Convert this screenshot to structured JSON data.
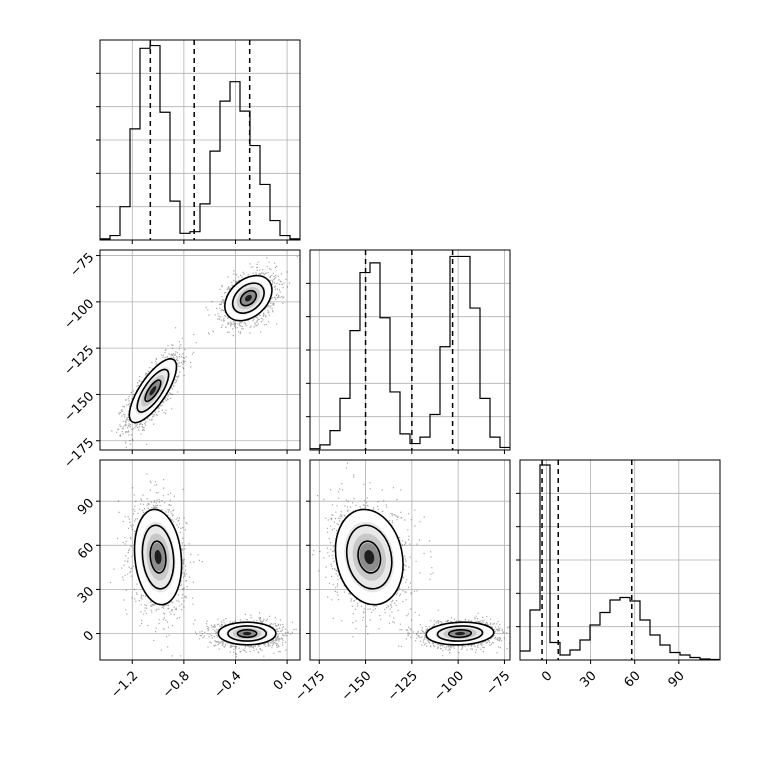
{
  "chart_data": {
    "type": "corner",
    "grid": true,
    "parameters": [
      {
        "range": [
          -1.45,
          0.1
        ],
        "ticks": [
          -1.2,
          -0.8,
          -0.4,
          0.0
        ],
        "tick_labels": [
          "−1.2",
          "−0.8",
          "−0.4",
          "0.0"
        ]
      },
      {
        "range": [
          -180,
          -72
        ],
        "ticks": [
          -175,
          -150,
          -125,
          -100,
          -75
        ],
        "tick_labels": [
          "−175",
          "−150",
          "−125",
          "−100",
          "−75"
        ]
      },
      {
        "range": [
          -18,
          118
        ],
        "ticks": [
          0,
          30,
          60,
          90
        ],
        "tick_labels": [
          "0",
          "30",
          "60",
          "90"
        ]
      }
    ],
    "histograms": [
      {
        "param": 0,
        "edges": [
          -1.45,
          -1.3725,
          -1.295,
          -1.2175,
          -1.14,
          -1.0625,
          -0.985,
          -0.9075,
          -0.83,
          -0.7525,
          -0.675,
          -0.5975,
          -0.52,
          -0.4425,
          -0.365,
          -0.2875,
          -0.21,
          -0.1325,
          -0.055,
          0.0225,
          0.1
        ],
        "counts": [
          2,
          8,
          60,
          200,
          345,
          350,
          230,
          70,
          12,
          15,
          65,
          160,
          250,
          285,
          232,
          170,
          100,
          35,
          8,
          2
        ],
        "ymax": 360,
        "quantiles": [
          -1.06,
          -0.72,
          -0.29
        ]
      },
      {
        "param": 1,
        "edges": [
          -180,
          -174.6,
          -169.2,
          -163.8,
          -158.4,
          -153,
          -147.6,
          -142.2,
          -136.8,
          -131.4,
          -126,
          -120.6,
          -115.2,
          -109.8,
          -104.4,
          -99,
          -93.6,
          -88.2,
          -82.8,
          -77.4,
          -72
        ],
        "counts": [
          2,
          8,
          30,
          80,
          185,
          275,
          290,
          205,
          90,
          25,
          10,
          20,
          55,
          160,
          300,
          300,
          220,
          80,
          20,
          4
        ],
        "ymax": 310,
        "quantiles": [
          -150,
          -125,
          -103
        ]
      },
      {
        "param": 2,
        "edges": [
          -18,
          -11.2,
          -4.4,
          2.4,
          9.2,
          16,
          22.8,
          29.6,
          36.4,
          43.2,
          50,
          56.8,
          63.6,
          70.4,
          77.2,
          84,
          90.8,
          97.6,
          104.4,
          111.2,
          118
        ],
        "counts": [
          18,
          100,
          390,
          35,
          10,
          20,
          40,
          70,
          95,
          120,
          125,
          118,
          80,
          50,
          30,
          15,
          10,
          5,
          2,
          1
        ],
        "ymax": 400,
        "quantiles": [
          -3,
          8,
          58
        ]
      }
    ],
    "panels_2d": [
      {
        "xparam": 0,
        "yparam": 1,
        "clusters": [
          {
            "center": [
              -1.04,
              -148
            ],
            "sigma": [
              0.09,
              8.5
            ],
            "rho": 0.75,
            "weight": 0.5
          },
          {
            "center": [
              -0.3,
              -98
            ],
            "sigma": [
              0.09,
              6
            ],
            "rho": 0.35,
            "weight": 0.5
          }
        ]
      },
      {
        "xparam": 0,
        "yparam": 2,
        "clusters": [
          {
            "center": [
              -1.0,
              52
            ],
            "sigma": [
              0.09,
              16
            ],
            "rho": -0.15,
            "weight": 0.5
          },
          {
            "center": [
              -0.31,
              0
            ],
            "sigma": [
              0.11,
              3.8
            ],
            "rho": 0.0,
            "weight": 0.5
          }
        ]
      },
      {
        "xparam": 1,
        "yparam": 2,
        "clusters": [
          {
            "center": [
              -148,
              52
            ],
            "sigma": [
              9,
              16
            ],
            "rho": -0.15,
            "weight": 0.5
          },
          {
            "center": [
              -99,
              0
            ],
            "sigma": [
              9,
              3.8
            ],
            "rho": 0.1,
            "weight": 0.5
          }
        ]
      }
    ],
    "contour_levels": [
      0.5,
      1.0,
      1.5
    ]
  }
}
